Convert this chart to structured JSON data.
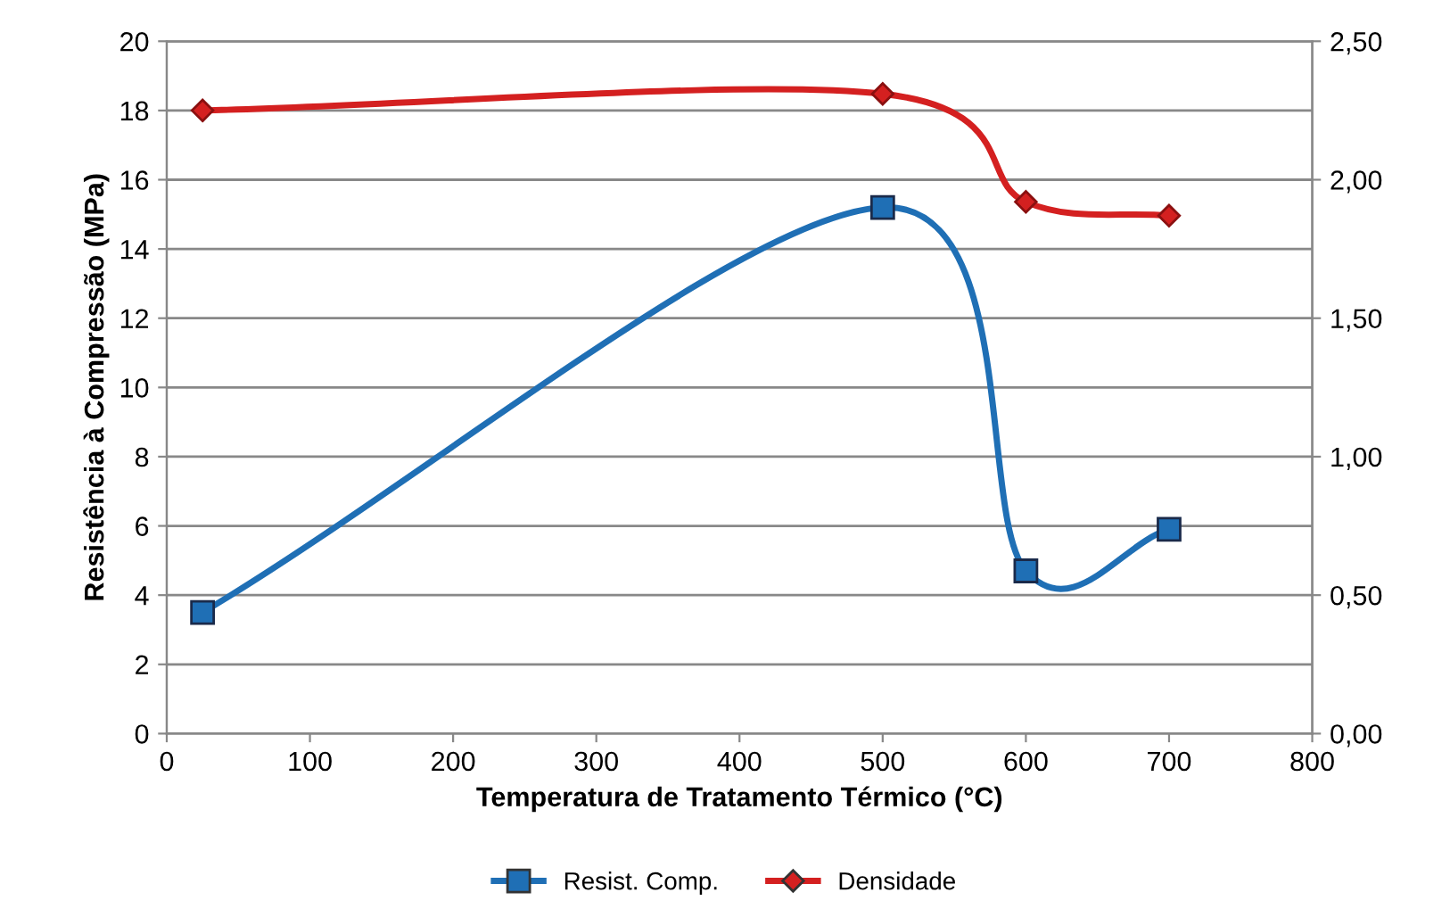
{
  "chart_data": {
    "type": "line",
    "xlabel": "Temperatura de Tratamento Térmico (°C)",
    "ylabel": "Resistência à Compressão (MPa)",
    "x": [
      25,
      500,
      600,
      700
    ],
    "series": [
      {
        "name": "Resist. Comp.",
        "color": "#1f6fb5",
        "values": [
          3.5,
          15.2,
          4.7,
          5.9
        ],
        "marker": "square"
      },
      {
        "name": "Densidade",
        "color": "#d42020",
        "values": [
          2.25,
          2.31,
          1.92,
          1.87
        ],
        "marker": "diamond",
        "axis": "y2"
      }
    ],
    "xlim": [
      0,
      800
    ],
    "xticks": [
      0,
      100,
      200,
      300,
      400,
      500,
      600,
      700,
      800
    ],
    "ylim": [
      0,
      20
    ],
    "yticks": [
      0,
      2,
      4,
      6,
      8,
      10,
      12,
      14,
      16,
      18,
      20
    ],
    "y2lim": [
      0,
      2.5
    ],
    "y2ticks": [
      {
        "value": 0,
        "label": "0,00"
      },
      {
        "value": 0.5,
        "label": "0,50"
      },
      {
        "value": 1.0,
        "label": "1,00"
      },
      {
        "value": 1.5,
        "label": "1,50"
      },
      {
        "value": 2.0,
        "label": "2,00"
      },
      {
        "value": 2.5,
        "label": "2,50"
      }
    ],
    "grid": "y",
    "legend": "bottom",
    "line_style": "solid"
  }
}
